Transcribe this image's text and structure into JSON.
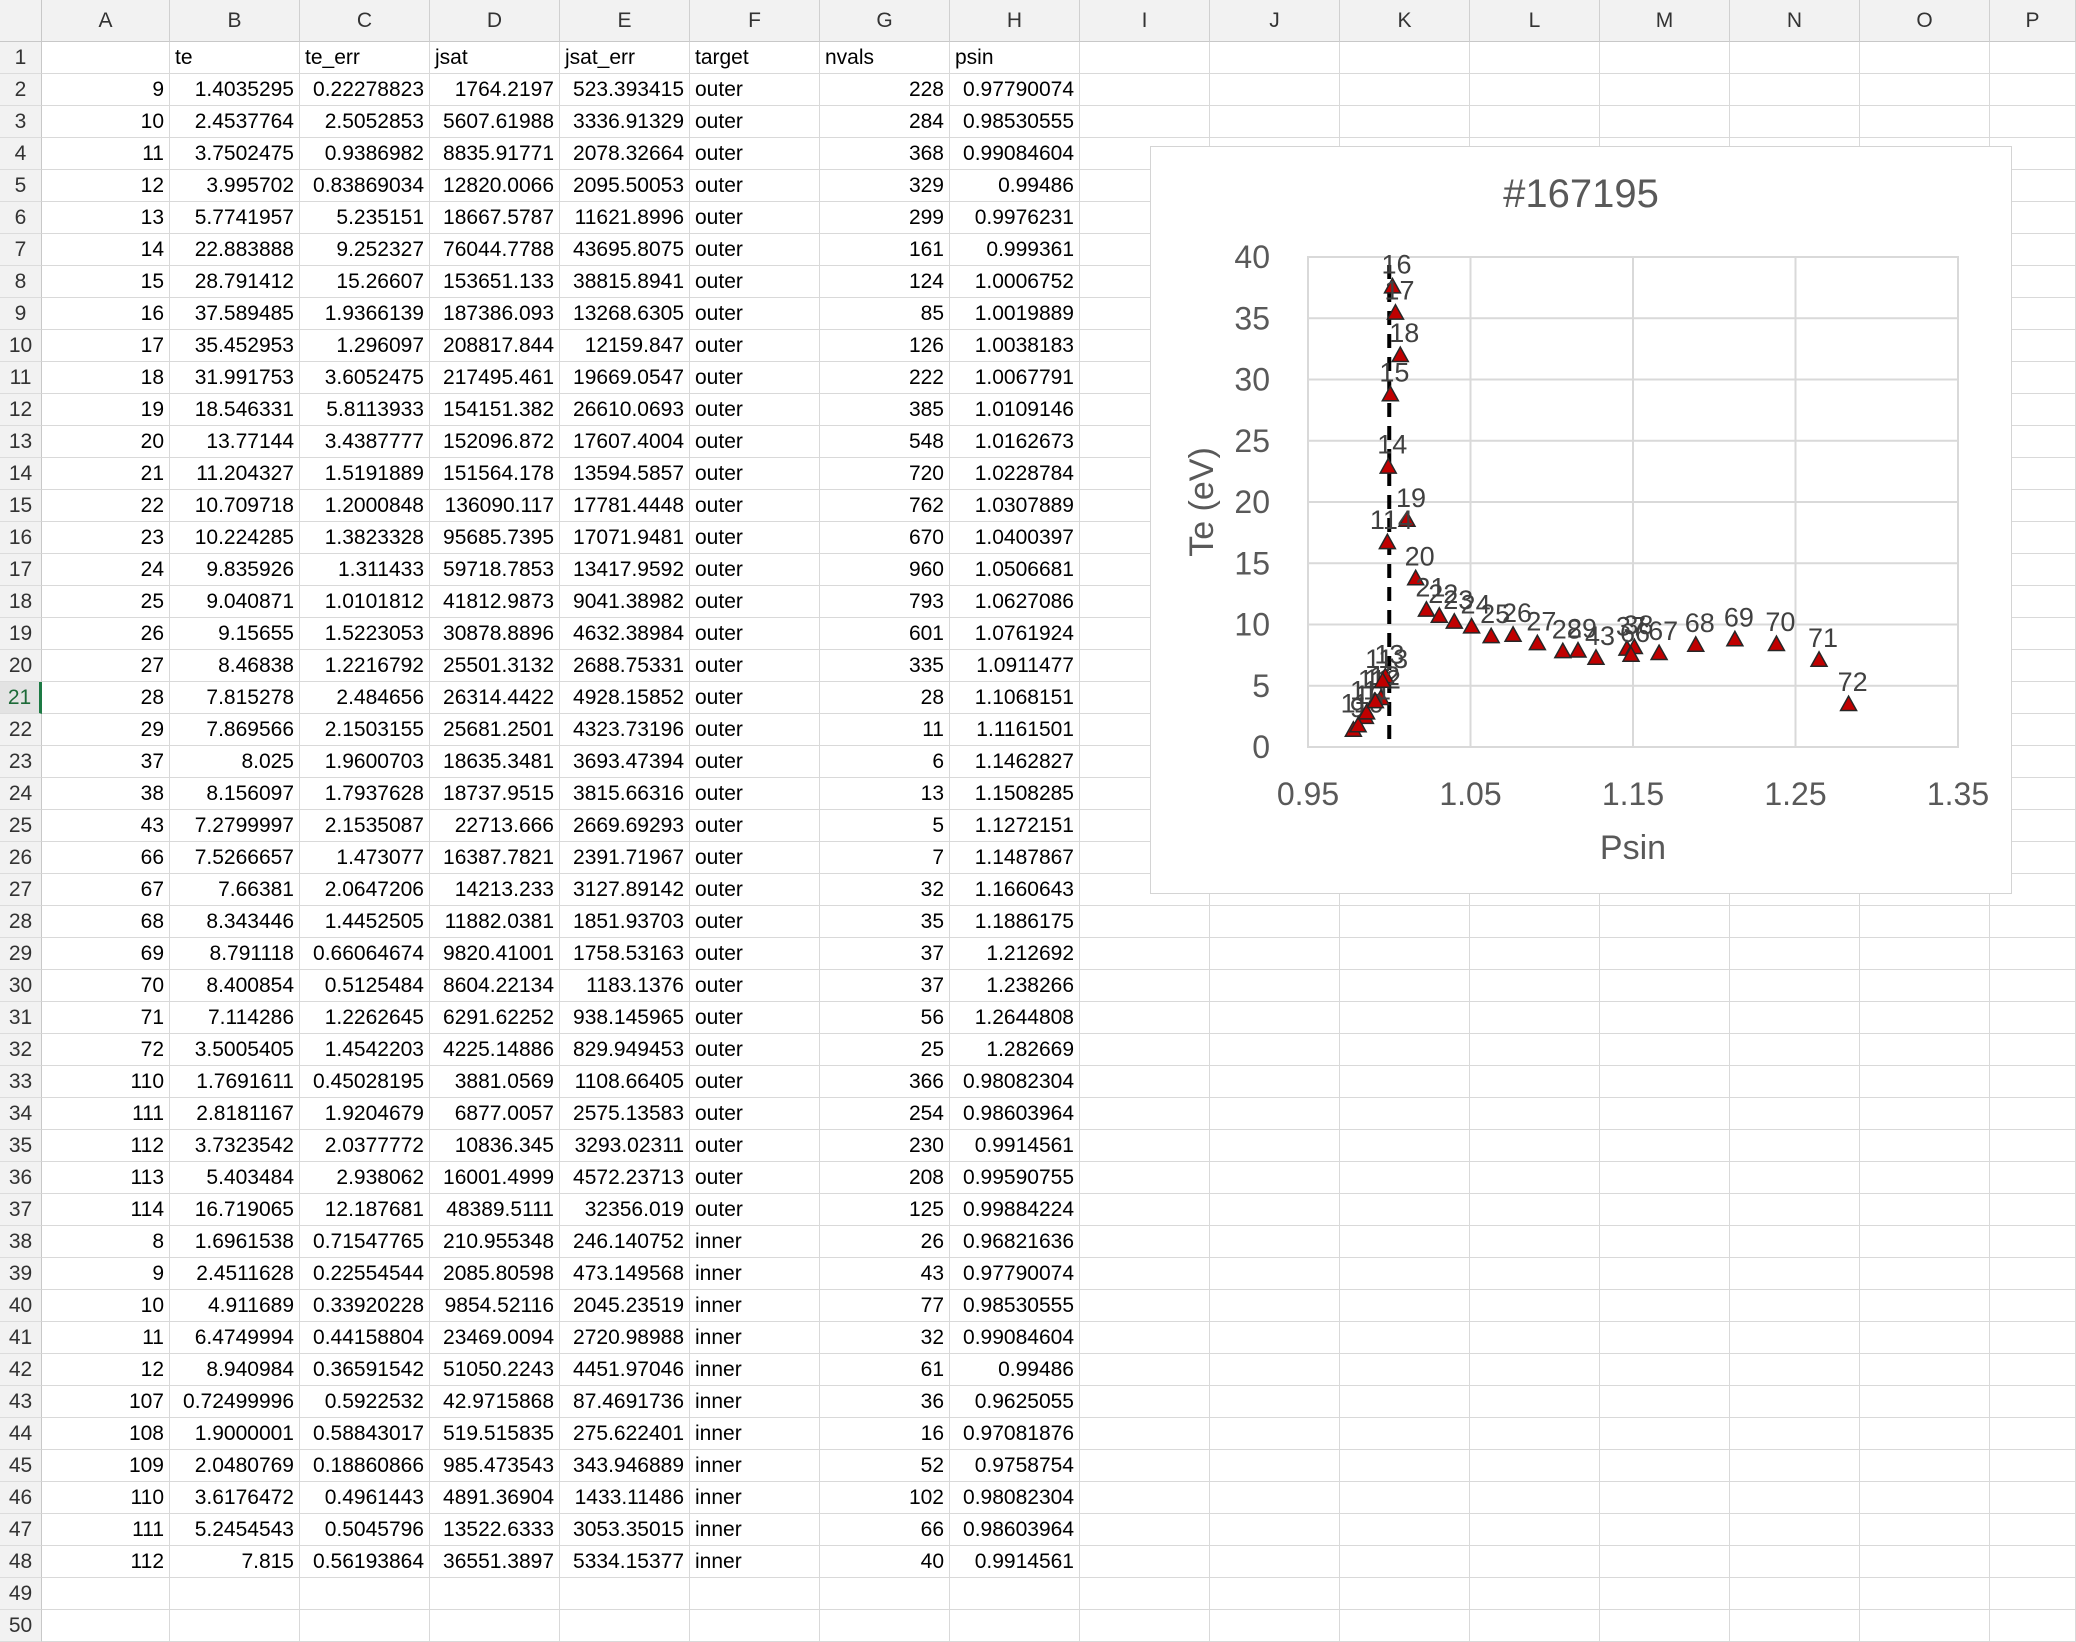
{
  "columns": [
    "A",
    "B",
    "C",
    "D",
    "E",
    "F",
    "G",
    "H",
    "I",
    "J",
    "K",
    "L",
    "M",
    "N",
    "O",
    "P"
  ],
  "header_row": [
    "",
    "te",
    "te_err",
    "jsat",
    "jsat_err",
    "target",
    "nvals",
    "psin"
  ],
  "active_row": 21,
  "rows": [
    [
      "9",
      "1.4035295",
      "0.22278823",
      "1764.2197",
      "523.393415",
      "outer",
      "228",
      "0.97790074"
    ],
    [
      "10",
      "2.4537764",
      "2.5052853",
      "5607.61988",
      "3336.91329",
      "outer",
      "284",
      "0.98530555"
    ],
    [
      "11",
      "3.7502475",
      "0.9386982",
      "8835.91771",
      "2078.32664",
      "outer",
      "368",
      "0.99084604"
    ],
    [
      "12",
      "3.995702",
      "0.83869034",
      "12820.0066",
      "2095.50053",
      "outer",
      "329",
      "0.99486"
    ],
    [
      "13",
      "5.7741957",
      "5.235151",
      "18667.5787",
      "11621.8996",
      "outer",
      "299",
      "0.9976231"
    ],
    [
      "14",
      "22.883888",
      "9.252327",
      "76044.7788",
      "43695.8075",
      "outer",
      "161",
      "0.999361"
    ],
    [
      "15",
      "28.791412",
      "15.26607",
      "153651.133",
      "38815.8941",
      "outer",
      "124",
      "1.0006752"
    ],
    [
      "16",
      "37.589485",
      "1.9366139",
      "187386.093",
      "13268.6305",
      "outer",
      "85",
      "1.0019889"
    ],
    [
      "17",
      "35.452953",
      "1.296097",
      "208817.844",
      "12159.847",
      "outer",
      "126",
      "1.0038183"
    ],
    [
      "18",
      "31.991753",
      "3.6052475",
      "217495.461",
      "19669.0547",
      "outer",
      "222",
      "1.0067791"
    ],
    [
      "19",
      "18.546331",
      "5.8113933",
      "154151.382",
      "26610.0693",
      "outer",
      "385",
      "1.0109146"
    ],
    [
      "20",
      "13.77144",
      "3.4387777",
      "152096.872",
      "17607.4004",
      "outer",
      "548",
      "1.0162673"
    ],
    [
      "21",
      "11.204327",
      "1.5191889",
      "151564.178",
      "13594.5857",
      "outer",
      "720",
      "1.0228784"
    ],
    [
      "22",
      "10.709718",
      "1.2000848",
      "136090.117",
      "17781.4448",
      "outer",
      "762",
      "1.0307889"
    ],
    [
      "23",
      "10.224285",
      "1.3823328",
      "95685.7395",
      "17071.9481",
      "outer",
      "670",
      "1.0400397"
    ],
    [
      "24",
      "9.835926",
      "1.311433",
      "59718.7853",
      "13417.9592",
      "outer",
      "960",
      "1.0506681"
    ],
    [
      "25",
      "9.040871",
      "1.0101812",
      "41812.9873",
      "9041.38982",
      "outer",
      "793",
      "1.0627086"
    ],
    [
      "26",
      "9.15655",
      "1.5223053",
      "30878.8896",
      "4632.38984",
      "outer",
      "601",
      "1.0761924"
    ],
    [
      "27",
      "8.46838",
      "1.2216792",
      "25501.3132",
      "2688.75331",
      "outer",
      "335",
      "1.0911477"
    ],
    [
      "28",
      "7.815278",
      "2.484656",
      "26314.4422",
      "4928.15852",
      "outer",
      "28",
      "1.1068151"
    ],
    [
      "29",
      "7.869566",
      "2.1503155",
      "25681.2501",
      "4323.73196",
      "outer",
      "11",
      "1.1161501"
    ],
    [
      "37",
      "8.025",
      "1.9600703",
      "18635.3481",
      "3693.47394",
      "outer",
      "6",
      "1.1462827"
    ],
    [
      "38",
      "8.156097",
      "1.7937628",
      "18737.9515",
      "3815.66316",
      "outer",
      "13",
      "1.1508285"
    ],
    [
      "43",
      "7.2799997",
      "2.1535087",
      "22713.666",
      "2669.69293",
      "outer",
      "5",
      "1.1272151"
    ],
    [
      "66",
      "7.5266657",
      "1.473077",
      "16387.7821",
      "2391.71967",
      "outer",
      "7",
      "1.1487867"
    ],
    [
      "67",
      "7.66381",
      "2.0647206",
      "14213.233",
      "3127.89142",
      "outer",
      "32",
      "1.1660643"
    ],
    [
      "68",
      "8.343446",
      "1.4452505",
      "11882.0381",
      "1851.93703",
      "outer",
      "35",
      "1.1886175"
    ],
    [
      "69",
      "8.791118",
      "0.66064674",
      "9820.41001",
      "1758.53163",
      "outer",
      "37",
      "1.212692"
    ],
    [
      "70",
      "8.400854",
      "0.5125484",
      "8604.22134",
      "1183.1376",
      "outer",
      "37",
      "1.238266"
    ],
    [
      "71",
      "7.114286",
      "1.2262645",
      "6291.62252",
      "938.145965",
      "outer",
      "56",
      "1.2644808"
    ],
    [
      "72",
      "3.5005405",
      "1.4542203",
      "4225.14886",
      "829.949453",
      "outer",
      "25",
      "1.282669"
    ],
    [
      "110",
      "1.7691611",
      "0.45028195",
      "3881.0569",
      "1108.66405",
      "outer",
      "366",
      "0.98082304"
    ],
    [
      "111",
      "2.8181167",
      "1.9204679",
      "6877.0057",
      "2575.13583",
      "outer",
      "254",
      "0.98603964"
    ],
    [
      "112",
      "3.7323542",
      "2.0377772",
      "10836.345",
      "3293.02311",
      "outer",
      "230",
      "0.9914561"
    ],
    [
      "113",
      "5.403484",
      "2.938062",
      "16001.4999",
      "4572.23713",
      "outer",
      "208",
      "0.99590755"
    ],
    [
      "114",
      "16.719065",
      "12.187681",
      "48389.5111",
      "32356.019",
      "outer",
      "125",
      "0.99884224"
    ],
    [
      "8",
      "1.6961538",
      "0.71547765",
      "210.955348",
      "246.140752",
      "inner",
      "26",
      "0.96821636"
    ],
    [
      "9",
      "2.4511628",
      "0.22554544",
      "2085.80598",
      "473.149568",
      "inner",
      "43",
      "0.97790074"
    ],
    [
      "10",
      "4.911689",
      "0.33920228",
      "9854.52116",
      "2045.23519",
      "inner",
      "77",
      "0.98530555"
    ],
    [
      "11",
      "6.4749994",
      "0.44158804",
      "23469.0094",
      "2720.98988",
      "inner",
      "32",
      "0.99084604"
    ],
    [
      "12",
      "8.940984",
      "0.36591542",
      "51050.2243",
      "4451.97046",
      "inner",
      "61",
      "0.99486"
    ],
    [
      "107",
      "0.72499996",
      "0.5922532",
      "42.9715868",
      "87.4691736",
      "inner",
      "36",
      "0.9625055"
    ],
    [
      "108",
      "1.9000001",
      "0.58843017",
      "519.515835",
      "275.622401",
      "inner",
      "16",
      "0.97081876"
    ],
    [
      "109",
      "2.0480769",
      "0.18860866",
      "985.473543",
      "343.946889",
      "inner",
      "52",
      "0.9758754"
    ],
    [
      "110",
      "3.6176472",
      "0.4961443",
      "4891.36904",
      "1433.11486",
      "inner",
      "102",
      "0.98082304"
    ],
    [
      "111",
      "5.2454543",
      "0.5045796",
      "13522.6333",
      "3053.35015",
      "inner",
      "66",
      "0.98603964"
    ],
    [
      "112",
      "7.815",
      "0.56193864",
      "36551.3897",
      "5334.15377",
      "inner",
      "40",
      "0.9914561"
    ]
  ],
  "chart_data": {
    "type": "scatter",
    "title": "#167195",
    "xlabel": "Psin",
    "ylabel": "Te (eV)",
    "xlim": [
      0.95,
      1.35
    ],
    "ylim": [
      0,
      40
    ],
    "xticks": [
      "0.95",
      "1.05",
      "1.15",
      "1.25",
      "1.35"
    ],
    "yticks": [
      "0",
      "5",
      "10",
      "15",
      "20",
      "25",
      "30",
      "35",
      "40"
    ],
    "marker": "triangle",
    "marker_color": "#c00000",
    "separatrix_x": 1.0,
    "grid": true,
    "legend": "none",
    "points": [
      {
        "label": "9",
        "x": 0.97790074,
        "y": 1.4035295
      },
      {
        "label": "10",
        "x": 0.98530555,
        "y": 2.4537764
      },
      {
        "label": "11",
        "x": 0.99084604,
        "y": 3.7502475
      },
      {
        "label": "12",
        "x": 0.99486,
        "y": 3.995702
      },
      {
        "label": "13",
        "x": 0.9976231,
        "y": 5.7741957
      },
      {
        "label": "14",
        "x": 0.999361,
        "y": 22.883888
      },
      {
        "label": "15",
        "x": 1.0006752,
        "y": 28.791412
      },
      {
        "label": "16",
        "x": 1.0019889,
        "y": 37.589485
      },
      {
        "label": "17",
        "x": 1.0038183,
        "y": 35.452953
      },
      {
        "label": "18",
        "x": 1.0067791,
        "y": 31.991753
      },
      {
        "label": "19",
        "x": 1.0109146,
        "y": 18.546331
      },
      {
        "label": "20",
        "x": 1.0162673,
        "y": 13.77144
      },
      {
        "label": "21",
        "x": 1.0228784,
        "y": 11.204327
      },
      {
        "label": "22",
        "x": 1.0307889,
        "y": 10.709718
      },
      {
        "label": "23",
        "x": 1.0400397,
        "y": 10.224285
      },
      {
        "label": "24",
        "x": 1.0506681,
        "y": 9.835926
      },
      {
        "label": "25",
        "x": 1.0627086,
        "y": 9.040871
      },
      {
        "label": "26",
        "x": 1.0761924,
        "y": 9.15655
      },
      {
        "label": "27",
        "x": 1.0911477,
        "y": 8.46838
      },
      {
        "label": "28",
        "x": 1.1068151,
        "y": 7.815278
      },
      {
        "label": "29",
        "x": 1.1161501,
        "y": 7.869566
      },
      {
        "label": "37",
        "x": 1.1462827,
        "y": 8.025
      },
      {
        "label": "38",
        "x": 1.1508285,
        "y": 8.156097
      },
      {
        "label": "43",
        "x": 1.1272151,
        "y": 7.2799997
      },
      {
        "label": "66",
        "x": 1.1487867,
        "y": 7.5266657
      },
      {
        "label": "67",
        "x": 1.1660643,
        "y": 7.66381
      },
      {
        "label": "68",
        "x": 1.1886175,
        "y": 8.343446
      },
      {
        "label": "69",
        "x": 1.212692,
        "y": 8.791118
      },
      {
        "label": "70",
        "x": 1.238266,
        "y": 8.400854
      },
      {
        "label": "71",
        "x": 1.2644808,
        "y": 7.114286
      },
      {
        "label": "72",
        "x": 1.282669,
        "y": 3.5005405
      },
      {
        "label": "110",
        "x": 0.98082304,
        "y": 1.7691611
      },
      {
        "label": "111",
        "x": 0.98603964,
        "y": 2.8181167
      },
      {
        "label": "112",
        "x": 0.9914561,
        "y": 3.7323542
      },
      {
        "label": "113",
        "x": 0.99590755,
        "y": 5.403484
      },
      {
        "label": "114",
        "x": 0.99884224,
        "y": 16.719065
      }
    ]
  }
}
